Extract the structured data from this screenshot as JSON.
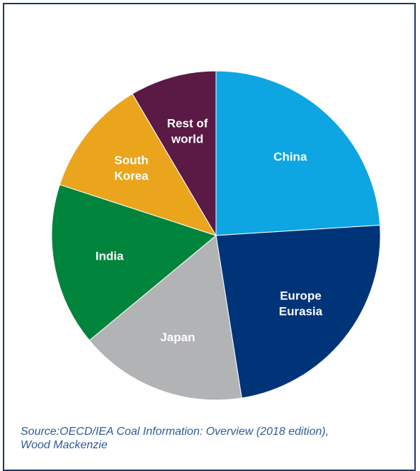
{
  "chart_data": {
    "type": "pie",
    "slices": [
      {
        "label": [
          "China"
        ],
        "value": 24.0,
        "color": "#0ea5e3"
      },
      {
        "label": [
          "Europe",
          "Eurasia"
        ],
        "value": 23.5,
        "color": "#003479"
      },
      {
        "label": [
          "Japan"
        ],
        "value": 16.5,
        "color": "#b2b3b5"
      },
      {
        "label": [
          "India"
        ],
        "value": 16.0,
        "color": "#00843c"
      },
      {
        "label": [
          "South",
          "Korea"
        ],
        "value": 11.5,
        "color": "#eaa51c"
      },
      {
        "label": [
          "Rest of",
          "world"
        ],
        "value": 8.5,
        "color": "#5a1a45"
      }
    ],
    "start_angle_deg": 0,
    "direction": "clockwise",
    "legend": "none"
  },
  "source": {
    "line1": "Source:OECD/IEA Coal Information: Overview (2018 edition),",
    "line2": "Wood Mackenzie"
  }
}
